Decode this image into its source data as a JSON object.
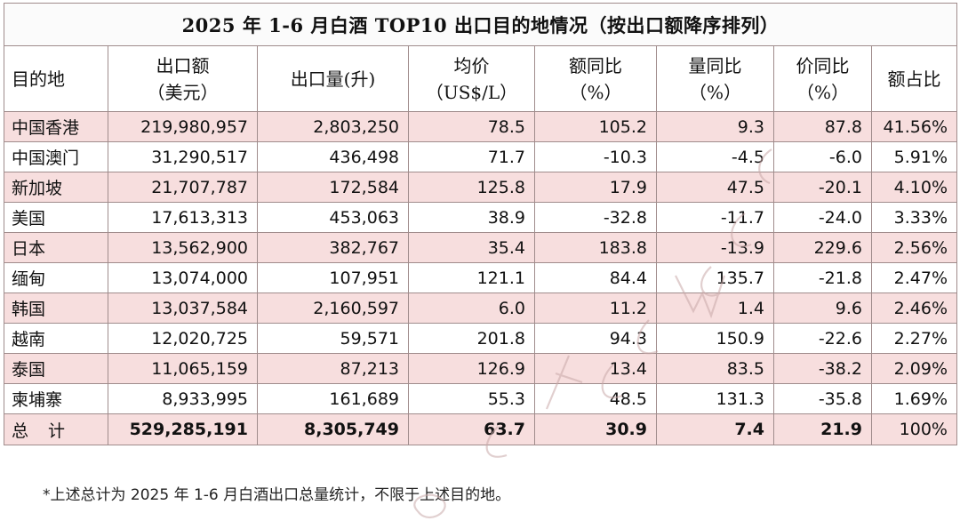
{
  "title": "2025 年 1-6 月白酒  TOP10 出口目的地情况（按出口额降序排列）",
  "headers": [
    "目的地",
    "出口额\n（美元）",
    "出口量(升)",
    "均价\n（US$/L）",
    "额同比\n（%）",
    "量同比\n（%）",
    "价同比\n（%）",
    "额占比"
  ],
  "rows": [
    [
      "中国香港",
      "219,980,957",
      "2,803,250",
      "78.5",
      "105.2",
      "9.3",
      "87.8",
      "41.56%"
    ],
    [
      "中国澳门",
      "31,290,517",
      "436,498",
      "71.7",
      "-10.3",
      "-4.5",
      "-6.0",
      "5.91%"
    ],
    [
      "新加坡",
      "21,707,787",
      "172,584",
      "125.8",
      "17.9",
      "47.5",
      "-20.1",
      "4.10%"
    ],
    [
      "美国",
      "17,613,313",
      "453,063",
      "38.9",
      "-32.8",
      "-11.7",
      "-24.0",
      "3.33%"
    ],
    [
      "日本",
      "13,562,900",
      "382,767",
      "35.4",
      "183.8",
      "-13.9",
      "229.6",
      "2.56%"
    ],
    [
      "缅甸",
      "13,074,000",
      "107,951",
      "121.1",
      "84.4",
      "135.7",
      "-21.8",
      "2.47%"
    ],
    [
      "韩国",
      "13,037,584",
      "2,160,597",
      "6.0",
      "11.2",
      "1.4",
      "9.6",
      "2.46%"
    ],
    [
      "越南",
      "12,020,725",
      "59,571",
      "201.8",
      "94.3",
      "150.9",
      "-22.6",
      "2.27%"
    ],
    [
      "泰国",
      "11,065,159",
      "87,213",
      "126.9",
      "13.4",
      "83.5",
      "-38.2",
      "2.09%"
    ],
    [
      "柬埔寨",
      "8,933,995",
      "161,689",
      "55.3",
      "48.5",
      "131.3",
      "-35.8",
      "1.69%"
    ]
  ],
  "total": [
    "总计",
    "529,285,191",
    "8,305,749",
    "63.7",
    "30.9",
    "7.4",
    "21.9",
    "100%"
  ],
  "note": "*上述总计为 2025 年 1-6 月白酒出口总量统计，不限于上述目的地。",
  "colors": {
    "row_pink": "#f7dede",
    "border": "#a08c8c",
    "watermark": "#c9a9a9"
  }
}
